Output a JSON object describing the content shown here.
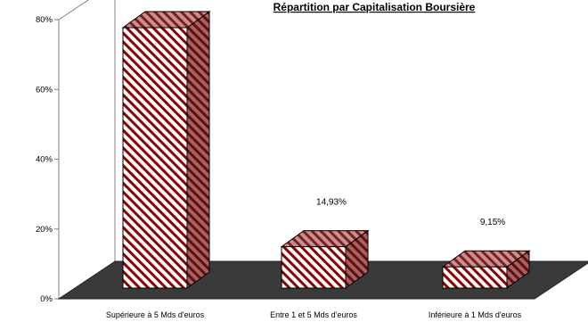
{
  "chart_data": {
    "type": "bar",
    "title": "Répartition par Capitalisation Boursière",
    "xlabel": "",
    "ylabel": "",
    "categories": [
      "Supérieure à 5 Mds d'euros",
      "Entre 1 et 5 Mds d'euros",
      "Inférieure à 1 Mds d'euros"
    ],
    "series": [
      {
        "values": [
          77.7,
          14.93,
          9.15
        ],
        "data_labels": [
          null,
          "14,93%",
          "9,15%"
        ]
      }
    ],
    "ylim": [
      0,
      80
    ],
    "yticks": [
      0,
      20,
      40,
      60,
      80
    ],
    "ytick_labels": [
      "0%",
      "20%",
      "40%",
      "60%",
      "80%"
    ],
    "grid": false,
    "legend": "none",
    "style": "3d",
    "colors": {
      "bar_stripe": "#8b0000",
      "bar_fill": "#ffffff",
      "bar_side": "#7a3a3a",
      "floor": "#3a3a3a",
      "axis": "#808080"
    }
  }
}
